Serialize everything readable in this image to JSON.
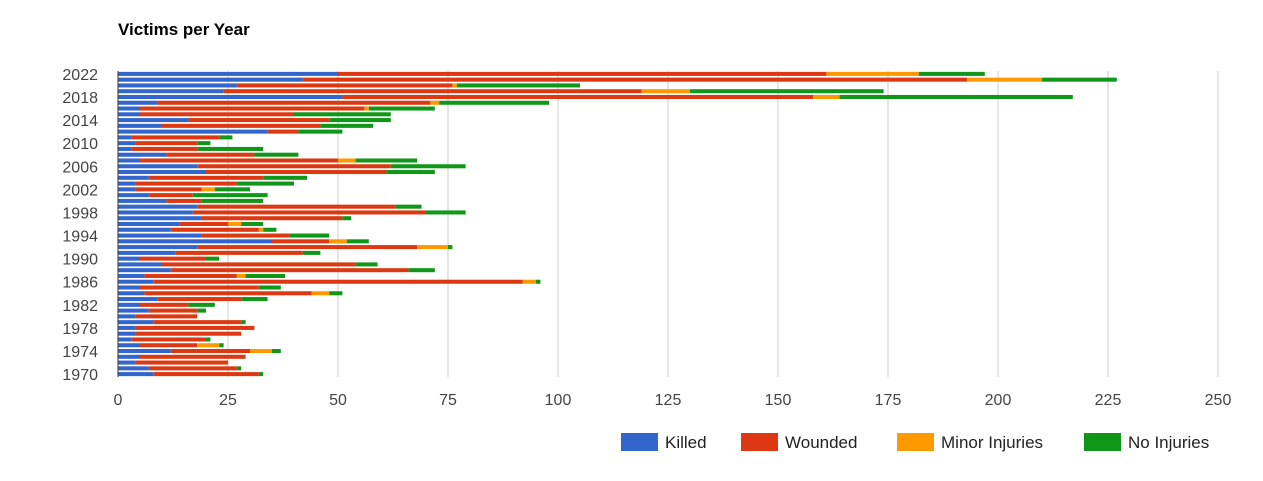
{
  "chart_data": {
    "type": "bar",
    "orientation": "horizontal",
    "stacked": true,
    "title": "Victims per Year",
    "xlabel": "",
    "ylabel": "",
    "xlim": [
      0,
      250
    ],
    "x_ticks": [
      0,
      25,
      50,
      75,
      100,
      125,
      150,
      175,
      200,
      225,
      250
    ],
    "grid": true,
    "legend_position": "bottom-right",
    "y_tick_labels": [
      "2022",
      "2018",
      "2014",
      "2010",
      "2006",
      "2002",
      "1998",
      "1994",
      "1990",
      "1986",
      "1982",
      "1978",
      "1974",
      "1970"
    ],
    "categories": [
      2022,
      2021,
      2020,
      2019,
      2018,
      2017,
      2016,
      2015,
      2014,
      2013,
      2012,
      2011,
      2010,
      2009,
      2008,
      2007,
      2006,
      2005,
      2004,
      2003,
      2002,
      2001,
      2000,
      1999,
      1998,
      1997,
      1996,
      1995,
      1994,
      1993,
      1992,
      1991,
      1990,
      1989,
      1988,
      1987,
      1986,
      1985,
      1984,
      1983,
      1982,
      1981,
      1980,
      1979,
      1978,
      1977,
      1976,
      1975,
      1974,
      1973,
      1972,
      1971,
      1970
    ],
    "series": [
      {
        "name": "Killed",
        "color": "#3366cc",
        "values": [
          50,
          42,
          27,
          24,
          51,
          9,
          5,
          5,
          16,
          10,
          34,
          3,
          4,
          3,
          11,
          5,
          18,
          20,
          7,
          4,
          4,
          7,
          11,
          18,
          17,
          19,
          14,
          12,
          19,
          35,
          18,
          13,
          5,
          10,
          12,
          6,
          8,
          5,
          6,
          9,
          5,
          7,
          4,
          8,
          4,
          4,
          3,
          5,
          12,
          5,
          4,
          7,
          8
        ]
      },
      {
        "name": "Wounded",
        "color": "#dc3912",
        "values": [
          111,
          151,
          49,
          95,
          107,
          62,
          51,
          35,
          32,
          36,
          7,
          20,
          14,
          15,
          20,
          45,
          44,
          41,
          26,
          23,
          15,
          10,
          8,
          45,
          53,
          32,
          11,
          20,
          20,
          13,
          50,
          29,
          15,
          44,
          54,
          21,
          84,
          27,
          38,
          19,
          11,
          11,
          14,
          20,
          27,
          24,
          17,
          13,
          18,
          24,
          21,
          20,
          24
        ]
      },
      {
        "name": "Minor Injuries",
        "color": "#ff9900",
        "values": [
          21,
          17,
          1,
          11,
          6,
          2,
          1,
          0,
          0,
          0,
          0,
          0,
          0,
          0,
          0,
          4,
          0,
          0,
          0,
          0,
          3,
          0,
          0,
          0,
          0,
          0,
          3,
          1,
          0,
          4,
          7,
          0,
          0,
          0,
          0,
          2,
          3,
          0,
          4,
          0,
          0,
          0,
          0,
          0,
          0,
          0,
          0,
          5,
          5,
          0,
          0,
          0,
          0
        ]
      },
      {
        "name": "No Injuries",
        "color": "#109618",
        "values": [
          15,
          17,
          28,
          44,
          53,
          25,
          15,
          22,
          14,
          12,
          10,
          3,
          3,
          15,
          10,
          14,
          17,
          11,
          10,
          13,
          8,
          17,
          14,
          6,
          9,
          2,
          5,
          3,
          9,
          5,
          1,
          4,
          3,
          5,
          6,
          9,
          1,
          5,
          3,
          6,
          6,
          2,
          0,
          1,
          0,
          0,
          1,
          1,
          2,
          0,
          0,
          1,
          1
        ]
      }
    ]
  }
}
